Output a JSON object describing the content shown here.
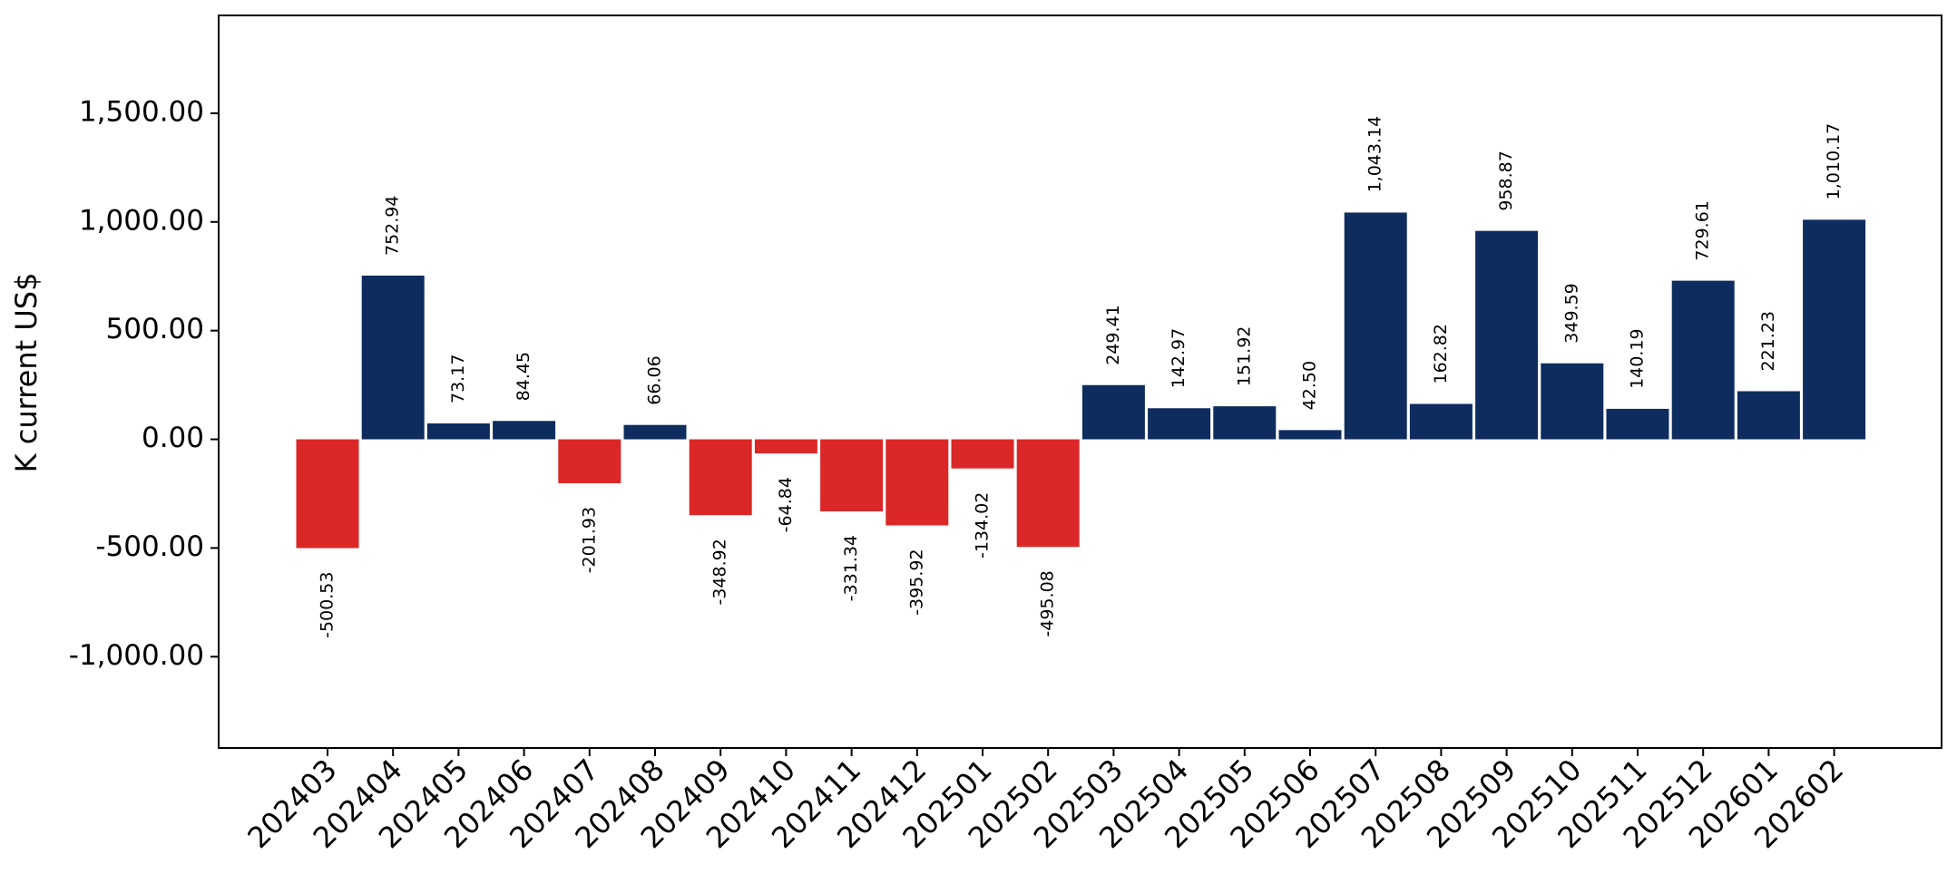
{
  "chart_data": {
    "type": "bar",
    "title": "",
    "xlabel": "",
    "ylabel": "K current US$",
    "categories": [
      "202403",
      "202404",
      "202405",
      "202406",
      "202407",
      "202408",
      "202409",
      "202410",
      "202411",
      "202412",
      "202501",
      "202502",
      "202503",
      "202504",
      "202505",
      "202506",
      "202507",
      "202508",
      "202509",
      "202510",
      "202511",
      "202512",
      "202601",
      "202602"
    ],
    "values": [
      -500.53,
      752.94,
      73.17,
      84.45,
      -201.93,
      66.06,
      -348.92,
      -64.84,
      -331.34,
      -395.92,
      -134.02,
      -495.08,
      249.41,
      142.97,
      151.92,
      42.5,
      1043.14,
      162.82,
      958.87,
      349.59,
      140.19,
      729.61,
      221.23,
      1010.17
    ],
    "value_labels": [
      "-500.53",
      "752.94",
      "73.17",
      "84.45",
      "-201.93",
      "66.06",
      "-348.92",
      "-64.84",
      "-331.34",
      "-395.92",
      "-134.02",
      "-495.08",
      "249.41",
      "142.97",
      "151.92",
      "42.50",
      "1,043.14",
      "162.82",
      "958.87",
      "349.59",
      "140.19",
      "729.61",
      "221.23",
      "1,010.17"
    ],
    "ylim": [
      -1420,
      1950
    ],
    "yticks": [
      -1000,
      -500,
      0,
      500,
      1000,
      1500
    ],
    "ytick_labels": [
      "-1,000.00",
      "-500.00",
      "0.00",
      "500.00",
      "1,000.00",
      "1,500.00"
    ],
    "grid": false,
    "legend": "none",
    "colors": {
      "positive": "#0e2d5e",
      "negative": "#db2727"
    }
  }
}
